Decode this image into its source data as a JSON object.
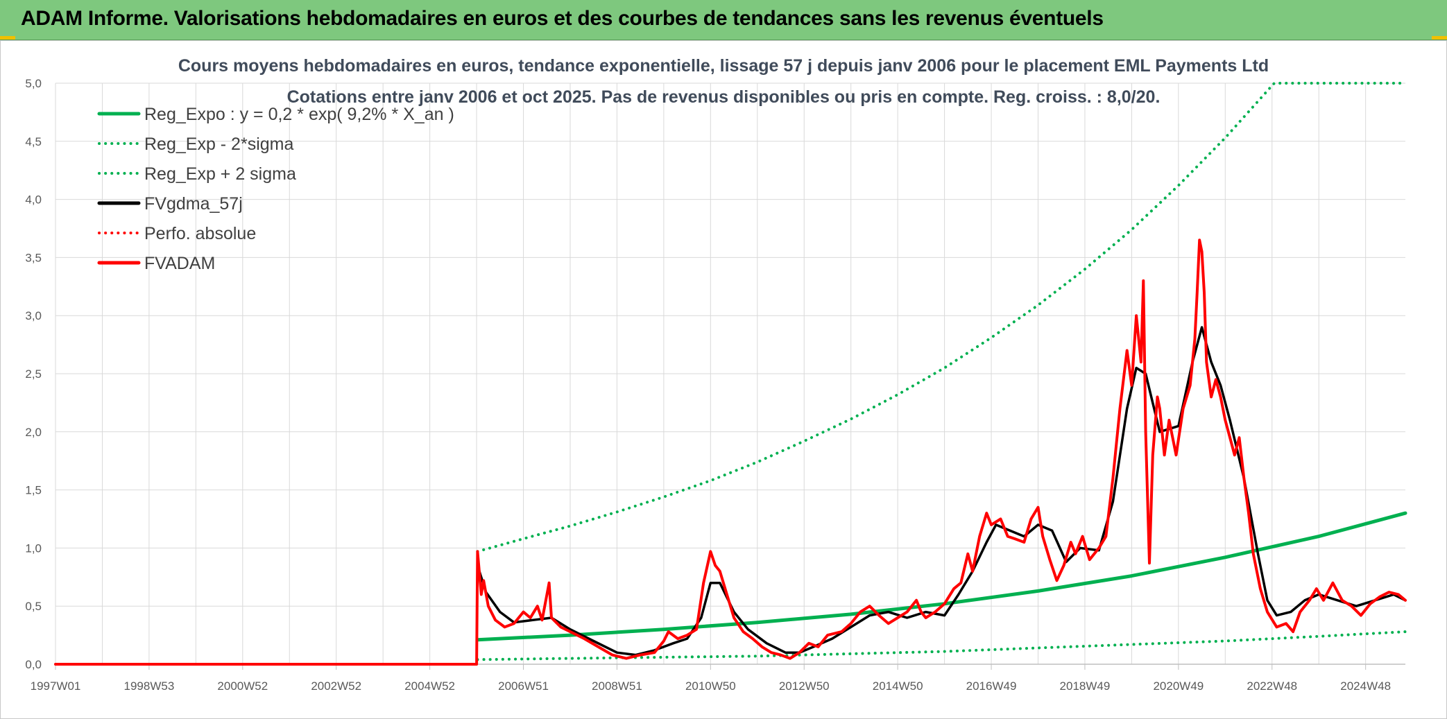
{
  "banner": {
    "title": "ADAM Informe. Valorisations hebdomadaires en euros et des courbes de tendances sans les revenus éventuels",
    "accent": "#7ec87e"
  },
  "chart_data": {
    "type": "line",
    "title": "Cours moyens hebdomadaires en euros, tendance exponentielle, lissage 57 j depuis janv 2006 pour le placement EML Payments Ltd",
    "subtitle": "Cotations entre janv 2006 et oct 2025. Pas de revenus disponibles ou pris en compte. Reg. croiss. : 8,0/20.",
    "xlabel": "",
    "ylabel": "",
    "xlim": [
      1997.0,
      2025.85
    ],
    "ylim": [
      0,
      5
    ],
    "grid": true,
    "legend_position": "top-left",
    "y_ticks": [
      "0,0",
      "0,5",
      "1,0",
      "1,5",
      "2,0",
      "2,5",
      "3,0",
      "3,5",
      "4,0",
      "4,5",
      "5,0"
    ],
    "x_ticks": [
      {
        "t": 1997.0,
        "label": "1997W01"
      },
      {
        "t": 1999.0,
        "label": "1998W53"
      },
      {
        "t": 2001.0,
        "label": "2000W52"
      },
      {
        "t": 2003.0,
        "label": "2002W52"
      },
      {
        "t": 2005.0,
        "label": "2004W52"
      },
      {
        "t": 2007.0,
        "label": "2006W51"
      },
      {
        "t": 2009.0,
        "label": "2008W51"
      },
      {
        "t": 2011.0,
        "label": "2010W50"
      },
      {
        "t": 2013.0,
        "label": "2012W50"
      },
      {
        "t": 2015.0,
        "label": "2014W50"
      },
      {
        "t": 2017.0,
        "label": "2016W49"
      },
      {
        "t": 2019.0,
        "label": "2018W49"
      },
      {
        "t": 2021.0,
        "label": "2020W49"
      },
      {
        "t": 2023.0,
        "label": "2022W48"
      },
      {
        "t": 2025.0,
        "label": "2024W48"
      }
    ],
    "series": [
      {
        "name": "Reg_Expo : y = 0,2 * exp( 9,2% *  X_an )",
        "color": "#00b050",
        "style": "solid",
        "points": [
          [
            2006.02,
            0.21
          ],
          [
            2008,
            0.25
          ],
          [
            2010,
            0.3
          ],
          [
            2012,
            0.36
          ],
          [
            2014,
            0.43
          ],
          [
            2016,
            0.52
          ],
          [
            2018,
            0.63
          ],
          [
            2020,
            0.76
          ],
          [
            2022,
            0.92
          ],
          [
            2024,
            1.1
          ],
          [
            2025.85,
            1.3
          ]
        ]
      },
      {
        "name": "Reg_Exp - 2*sigma",
        "color": "#00b050",
        "style": "dotted",
        "points": [
          [
            2006.02,
            0.04
          ],
          [
            2008,
            0.05
          ],
          [
            2010,
            0.06
          ],
          [
            2012,
            0.07
          ],
          [
            2014,
            0.09
          ],
          [
            2016,
            0.11
          ],
          [
            2018,
            0.14
          ],
          [
            2020,
            0.17
          ],
          [
            2022,
            0.2
          ],
          [
            2024,
            0.24
          ],
          [
            2025.85,
            0.28
          ]
        ]
      },
      {
        "name": "Reg_Exp + 2 sigma",
        "color": "#00b050",
        "style": "dotted",
        "points": [
          [
            2006.02,
            0.97
          ],
          [
            2007,
            1.08
          ],
          [
            2008,
            1.19
          ],
          [
            2009,
            1.31
          ],
          [
            2010,
            1.44
          ],
          [
            2011,
            1.58
          ],
          [
            2012,
            1.74
          ],
          [
            2013,
            1.92
          ],
          [
            2014,
            2.11
          ],
          [
            2015,
            2.32
          ],
          [
            2016,
            2.55
          ],
          [
            2017,
            2.81
          ],
          [
            2018,
            3.09
          ],
          [
            2019,
            3.4
          ],
          [
            2020,
            3.74
          ],
          [
            2021,
            4.12
          ],
          [
            2022,
            4.53
          ],
          [
            2023,
            4.98
          ],
          [
            2023.05,
            5.0
          ],
          [
            2025.85,
            5.0
          ]
        ]
      },
      {
        "name": "FVgdma_57j",
        "color": "#000000",
        "style": "solid",
        "points": [
          [
            2006.02,
            0.85
          ],
          [
            2006.2,
            0.62
          ],
          [
            2006.5,
            0.45
          ],
          [
            2006.8,
            0.36
          ],
          [
            2007.2,
            0.38
          ],
          [
            2007.6,
            0.4
          ],
          [
            2008.0,
            0.3
          ],
          [
            2008.5,
            0.2
          ],
          [
            2009.0,
            0.1
          ],
          [
            2009.4,
            0.08
          ],
          [
            2009.8,
            0.12
          ],
          [
            2010.2,
            0.18
          ],
          [
            2010.5,
            0.22
          ],
          [
            2010.8,
            0.4
          ],
          [
            2011.0,
            0.7
          ],
          [
            2011.2,
            0.7
          ],
          [
            2011.5,
            0.45
          ],
          [
            2011.8,
            0.3
          ],
          [
            2012.2,
            0.18
          ],
          [
            2012.6,
            0.1
          ],
          [
            2012.9,
            0.1
          ],
          [
            2013.2,
            0.15
          ],
          [
            2013.6,
            0.22
          ],
          [
            2014.0,
            0.32
          ],
          [
            2014.4,
            0.42
          ],
          [
            2014.8,
            0.45
          ],
          [
            2015.2,
            0.4
          ],
          [
            2015.6,
            0.45
          ],
          [
            2016.0,
            0.42
          ],
          [
            2016.3,
            0.6
          ],
          [
            2016.6,
            0.8
          ],
          [
            2016.9,
            1.05
          ],
          [
            2017.1,
            1.2
          ],
          [
            2017.4,
            1.15
          ],
          [
            2017.7,
            1.1
          ],
          [
            2018.0,
            1.2
          ],
          [
            2018.3,
            1.15
          ],
          [
            2018.6,
            0.88
          ],
          [
            2018.9,
            1.0
          ],
          [
            2019.3,
            0.98
          ],
          [
            2019.6,
            1.4
          ],
          [
            2019.9,
            2.2
          ],
          [
            2020.1,
            2.55
          ],
          [
            2020.3,
            2.5
          ],
          [
            2020.6,
            2.0
          ],
          [
            2021.0,
            2.05
          ],
          [
            2021.3,
            2.6
          ],
          [
            2021.5,
            2.9
          ],
          [
            2021.7,
            2.6
          ],
          [
            2021.9,
            2.4
          ],
          [
            2022.1,
            2.1
          ],
          [
            2022.4,
            1.6
          ],
          [
            2022.7,
            0.95
          ],
          [
            2022.9,
            0.55
          ],
          [
            2023.1,
            0.42
          ],
          [
            2023.4,
            0.45
          ],
          [
            2023.7,
            0.55
          ],
          [
            2024.0,
            0.6
          ],
          [
            2024.4,
            0.55
          ],
          [
            2024.8,
            0.5
          ],
          [
            2025.2,
            0.55
          ],
          [
            2025.6,
            0.6
          ],
          [
            2025.85,
            0.55
          ]
        ]
      },
      {
        "name": "Perfo. absolue",
        "color": "#ff0000",
        "style": "dotted",
        "points": []
      },
      {
        "name": "FVADAM",
        "color": "#ff0000",
        "style": "solid",
        "points": [
          [
            1997.0,
            0.0
          ],
          [
            2006.0,
            0.0
          ],
          [
            2006.02,
            0.97
          ],
          [
            2006.1,
            0.6
          ],
          [
            2006.15,
            0.72
          ],
          [
            2006.25,
            0.5
          ],
          [
            2006.4,
            0.38
          ],
          [
            2006.6,
            0.32
          ],
          [
            2006.8,
            0.35
          ],
          [
            2007.0,
            0.45
          ],
          [
            2007.15,
            0.4
          ],
          [
            2007.3,
            0.5
          ],
          [
            2007.4,
            0.38
          ],
          [
            2007.55,
            0.7
          ],
          [
            2007.6,
            0.4
          ],
          [
            2007.8,
            0.32
          ],
          [
            2008.0,
            0.28
          ],
          [
            2008.3,
            0.22
          ],
          [
            2008.6,
            0.15
          ],
          [
            2008.9,
            0.08
          ],
          [
            2009.2,
            0.05
          ],
          [
            2009.5,
            0.08
          ],
          [
            2009.8,
            0.1
          ],
          [
            2010.0,
            0.2
          ],
          [
            2010.1,
            0.28
          ],
          [
            2010.3,
            0.22
          ],
          [
            2010.5,
            0.25
          ],
          [
            2010.7,
            0.3
          ],
          [
            2010.85,
            0.7
          ],
          [
            2011.0,
            0.97
          ],
          [
            2011.1,
            0.85
          ],
          [
            2011.2,
            0.8
          ],
          [
            2011.35,
            0.6
          ],
          [
            2011.5,
            0.4
          ],
          [
            2011.7,
            0.28
          ],
          [
            2011.9,
            0.22
          ],
          [
            2012.1,
            0.15
          ],
          [
            2012.3,
            0.1
          ],
          [
            2012.5,
            0.08
          ],
          [
            2012.7,
            0.05
          ],
          [
            2012.9,
            0.1
          ],
          [
            2013.1,
            0.18
          ],
          [
            2013.3,
            0.15
          ],
          [
            2013.5,
            0.25
          ],
          [
            2013.8,
            0.28
          ],
          [
            2014.0,
            0.35
          ],
          [
            2014.2,
            0.45
          ],
          [
            2014.4,
            0.5
          ],
          [
            2014.6,
            0.42
          ],
          [
            2014.8,
            0.35
          ],
          [
            2015.0,
            0.4
          ],
          [
            2015.2,
            0.45
          ],
          [
            2015.4,
            0.55
          ],
          [
            2015.5,
            0.45
          ],
          [
            2015.6,
            0.4
          ],
          [
            2015.8,
            0.45
          ],
          [
            2016.0,
            0.52
          ],
          [
            2016.2,
            0.65
          ],
          [
            2016.35,
            0.7
          ],
          [
            2016.5,
            0.95
          ],
          [
            2016.6,
            0.8
          ],
          [
            2016.75,
            1.1
          ],
          [
            2016.9,
            1.3
          ],
          [
            2017.0,
            1.2
          ],
          [
            2017.2,
            1.25
          ],
          [
            2017.35,
            1.1
          ],
          [
            2017.5,
            1.08
          ],
          [
            2017.7,
            1.05
          ],
          [
            2017.85,
            1.25
          ],
          [
            2018.0,
            1.35
          ],
          [
            2018.1,
            1.1
          ],
          [
            2018.25,
            0.9
          ],
          [
            2018.4,
            0.72
          ],
          [
            2018.55,
            0.85
          ],
          [
            2018.7,
            1.05
          ],
          [
            2018.8,
            0.95
          ],
          [
            2018.95,
            1.1
          ],
          [
            2019.1,
            0.9
          ],
          [
            2019.3,
            1.0
          ],
          [
            2019.45,
            1.1
          ],
          [
            2019.6,
            1.6
          ],
          [
            2019.75,
            2.2
          ],
          [
            2019.9,
            2.7
          ],
          [
            2020.0,
            2.4
          ],
          [
            2020.1,
            3.0
          ],
          [
            2020.2,
            2.6
          ],
          [
            2020.25,
            3.3
          ],
          [
            2020.3,
            2.0
          ],
          [
            2020.38,
            0.87
          ],
          [
            2020.45,
            1.8
          ],
          [
            2020.55,
            2.3
          ],
          [
            2020.6,
            2.2
          ],
          [
            2020.7,
            1.8
          ],
          [
            2020.8,
            2.1
          ],
          [
            2020.95,
            1.8
          ],
          [
            2021.1,
            2.2
          ],
          [
            2021.25,
            2.4
          ],
          [
            2021.35,
            2.8
          ],
          [
            2021.4,
            3.2
          ],
          [
            2021.45,
            3.65
          ],
          [
            2021.5,
            3.55
          ],
          [
            2021.55,
            3.2
          ],
          [
            2021.6,
            2.6
          ],
          [
            2021.7,
            2.3
          ],
          [
            2021.8,
            2.45
          ],
          [
            2021.9,
            2.3
          ],
          [
            2022.0,
            2.1
          ],
          [
            2022.1,
            1.95
          ],
          [
            2022.2,
            1.8
          ],
          [
            2022.3,
            1.95
          ],
          [
            2022.4,
            1.6
          ],
          [
            2022.5,
            1.3
          ],
          [
            2022.6,
            0.95
          ],
          [
            2022.75,
            0.65
          ],
          [
            2022.9,
            0.45
          ],
          [
            2023.1,
            0.32
          ],
          [
            2023.3,
            0.35
          ],
          [
            2023.45,
            0.28
          ],
          [
            2023.6,
            0.45
          ],
          [
            2023.8,
            0.55
          ],
          [
            2023.95,
            0.65
          ],
          [
            2024.1,
            0.55
          ],
          [
            2024.3,
            0.7
          ],
          [
            2024.5,
            0.55
          ],
          [
            2024.7,
            0.5
          ],
          [
            2024.9,
            0.42
          ],
          [
            2025.1,
            0.52
          ],
          [
            2025.3,
            0.58
          ],
          [
            2025.5,
            0.62
          ],
          [
            2025.7,
            0.6
          ],
          [
            2025.85,
            0.55
          ]
        ]
      }
    ]
  }
}
